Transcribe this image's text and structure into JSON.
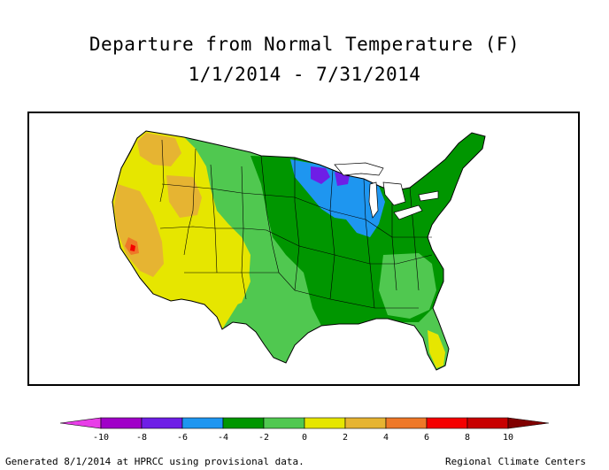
{
  "title": "Departure from Normal Temperature (F)",
  "period": "1/1/2014 - 7/31/2014",
  "legend": {
    "colors": [
      "#e83ee8",
      "#a000c8",
      "#6e1ee6",
      "#1e96f0",
      "#009600",
      "#50c850",
      "#e6e600",
      "#e6b432",
      "#ee7828",
      "#f50000",
      "#c80000",
      "#800000"
    ],
    "ticks": [
      "-10",
      "-8",
      "-6",
      "-4",
      "-2",
      "0",
      "2",
      "4",
      "6",
      "8",
      "10"
    ]
  },
  "map_colors": {
    "land": "#50c850",
    "strong_cool": "#009600",
    "cold": "#1e96f0",
    "very_cold": "#6e1ee6",
    "warm": "#e6e600",
    "warmer": "#e6b432",
    "hot": "#ee7828",
    "very_hot": "#f50000"
  },
  "footer_left": "Generated 8/1/2014 at HPRCC using provisional data.",
  "footer_right": "Regional Climate Centers"
}
